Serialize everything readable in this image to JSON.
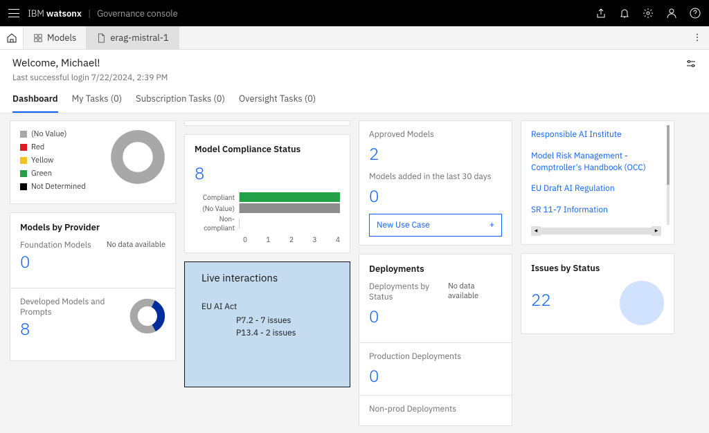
{
  "brand": {
    "company": "IBM",
    "product": "watsonx",
    "console": "Governance console"
  },
  "tabs": {
    "models": "Models",
    "doc": "erag-mistral-1"
  },
  "header": {
    "welcome": "Welcome, Michael!",
    "last_login": "Last successful login 7/22/2024, 2:39 PM"
  },
  "nav": {
    "dashboard": "Dashboard",
    "mytasks": "My Tasks (0)",
    "subscription": "Subscription Tasks (0)",
    "oversight": "Oversight Tasks (0)"
  },
  "status_legend": {
    "items": [
      {
        "label": "(No Value)",
        "color": "#a8a8a8"
      },
      {
        "label": "Red",
        "color": "#da1e28"
      },
      {
        "label": "Yellow",
        "color": "#f1c21b"
      },
      {
        "label": "Green",
        "color": "#24a148"
      },
      {
        "label": "Not Determined",
        "color": "#000000"
      }
    ],
    "donut": {
      "color": "#a8a8a8",
      "bg": "#ffffff"
    }
  },
  "providers": {
    "title": "Models by Provider",
    "foundation": {
      "label": "Foundation Models",
      "value": "0",
      "nodata": "No data available"
    },
    "developed": {
      "label": "Developed Models and Prompts",
      "value": "8",
      "donut": {
        "seg1_color": "#002d9c",
        "seg2_color": "#a8a8a8",
        "seg1_pct": 35
      }
    }
  },
  "compliance": {
    "title": "Model Compliance Status",
    "value": "8",
    "series": [
      {
        "label": "Compliant",
        "value": 4,
        "color": "#24a148"
      },
      {
        "label": "(No Value)",
        "value": 4,
        "color": "#8d8d8d"
      },
      {
        "label": "Non-compliant",
        "value": 0,
        "color": "#da1e28"
      }
    ],
    "axis": {
      "min": 0,
      "max": 4,
      "ticks": [
        "0",
        "1",
        "2",
        "3",
        "4"
      ]
    }
  },
  "live": {
    "title": "Live interactions",
    "group": "EU AI Act",
    "lines": [
      "P7.2 - 7 issues",
      "P13.4 - 2 issues"
    ]
  },
  "approved": {
    "label": "Approved Models",
    "value": "2",
    "added_label": "Models added in the last 30 days",
    "added_value": "0",
    "new_use_case": "New Use Case",
    "plus": "+"
  },
  "deployments": {
    "title": "Deployments",
    "bystatus": {
      "label": "Deployments by Status",
      "value": "0",
      "nodata": "No data available"
    },
    "prod": {
      "label": "Production Deployments",
      "value": "0"
    },
    "nonprod": {
      "label": "Non-prod Deployments"
    }
  },
  "links": {
    "items": [
      "Responsible AI Institute",
      "Model Risk Management - Comptroller's Handbook (OCC)",
      "EU Draft AI Regulation",
      "SR 11-7 Information"
    ]
  },
  "issues": {
    "title": "Issues by Status",
    "value": "22",
    "circle_color": "#d0e2ff"
  }
}
